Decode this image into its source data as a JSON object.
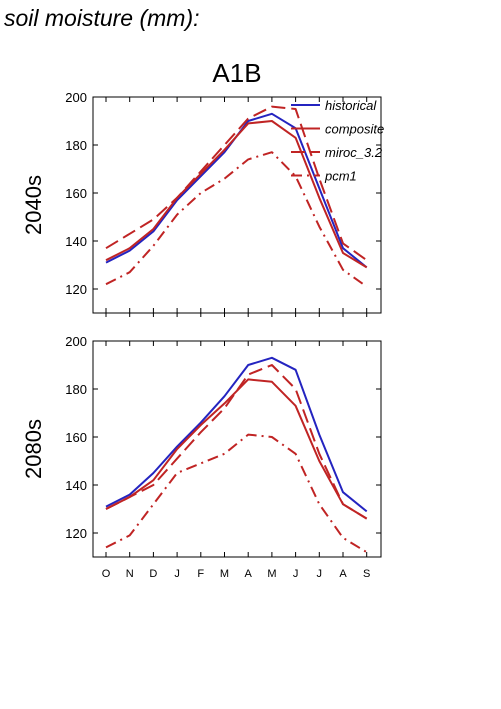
{
  "heading": "soil moisture (mm):",
  "scenario": "A1B",
  "colors": {
    "historical": "#2424c0",
    "models": "#c02424"
  },
  "chart_data": [
    {
      "type": "line",
      "ylabel": "2040s",
      "ylim": [
        110,
        200
      ],
      "yticks": [
        120,
        140,
        160,
        180,
        200
      ],
      "categories": [
        "O",
        "N",
        "D",
        "J",
        "F",
        "M",
        "A",
        "M",
        "J",
        "J",
        "A",
        "S"
      ],
      "legend": "top-right",
      "series": [
        {
          "name": "historical",
          "style": "solid",
          "color": "#2424c0",
          "values": [
            131,
            136,
            144,
            157,
            167,
            177,
            190,
            193,
            187,
            162,
            137,
            129
          ]
        },
        {
          "name": "composite",
          "style": "solid",
          "color": "#c02424",
          "values": [
            132,
            137,
            145,
            158,
            168,
            178,
            189,
            190,
            183,
            158,
            135,
            129
          ]
        },
        {
          "name": "miroc_3.2",
          "style": "dashed",
          "color": "#c02424",
          "values": [
            137,
            143,
            149,
            158,
            169,
            180,
            191,
            196,
            195,
            166,
            139,
            132
          ]
        },
        {
          "name": "pcm1",
          "style": "dashdot",
          "color": "#c02424",
          "values": [
            122,
            127,
            138,
            151,
            160,
            166,
            174,
            177,
            167,
            146,
            128,
            121
          ]
        }
      ]
    },
    {
      "type": "line",
      "ylabel": "2080s",
      "ylim": [
        110,
        200
      ],
      "yticks": [
        120,
        140,
        160,
        180,
        200
      ],
      "categories": [
        "O",
        "N",
        "D",
        "J",
        "F",
        "M",
        "A",
        "M",
        "J",
        "J",
        "A",
        "S"
      ],
      "series": [
        {
          "name": "historical",
          "style": "solid",
          "color": "#2424c0",
          "values": [
            131,
            136,
            145,
            156,
            166,
            177,
            190,
            193,
            188,
            161,
            137,
            129
          ]
        },
        {
          "name": "composite",
          "style": "solid",
          "color": "#c02424",
          "values": [
            130,
            135,
            142,
            155,
            165,
            174,
            184,
            183,
            173,
            150,
            132,
            126
          ]
        },
        {
          "name": "miroc_3.2",
          "style": "dashed",
          "color": "#c02424",
          "values": [
            130,
            135,
            140,
            151,
            162,
            172,
            186,
            190,
            180,
            153,
            132,
            126
          ]
        },
        {
          "name": "pcm1",
          "style": "dashdot",
          "color": "#c02424",
          "values": [
            114,
            119,
            132,
            145,
            149,
            153,
            161,
            160,
            153,
            132,
            118,
            112
          ]
        }
      ]
    }
  ]
}
